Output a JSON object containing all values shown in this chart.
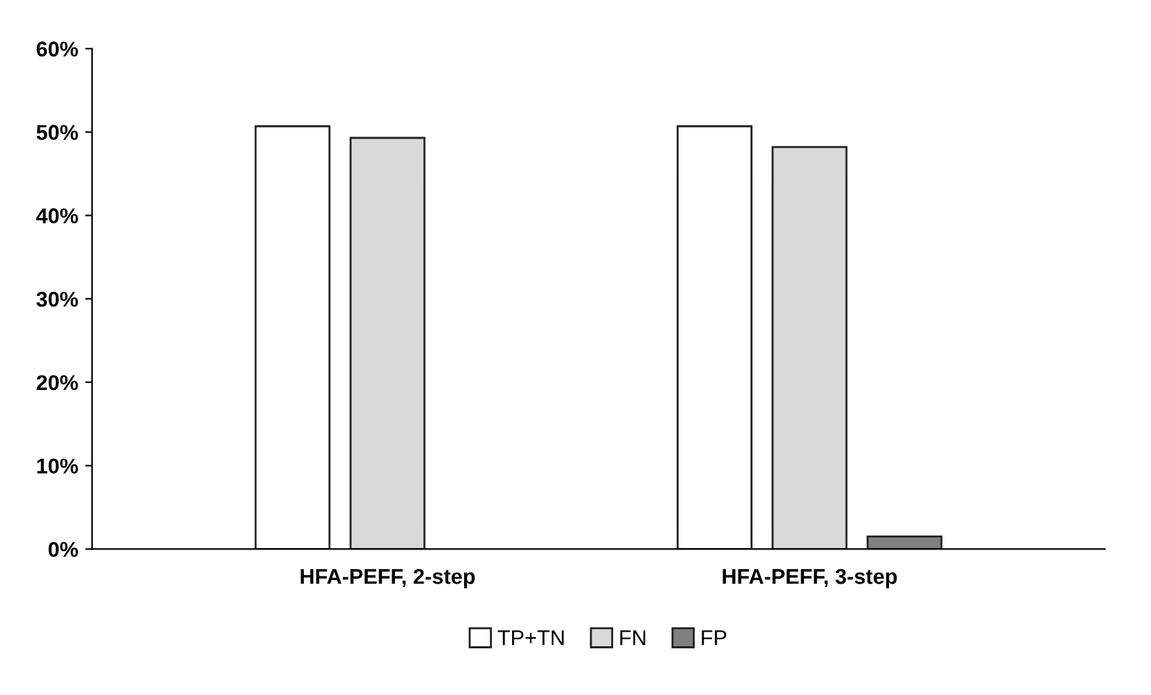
{
  "chart_data": {
    "type": "bar",
    "categories": [
      "HFA-PEFF, 2-step",
      "HFA-PEFF, 3-step"
    ],
    "series": [
      {
        "name": "TP+TN",
        "color": "#ffffff",
        "values": [
          50.7,
          50.7
        ]
      },
      {
        "name": "FN",
        "color": "#d9d9d9",
        "values": [
          49.3,
          48.2
        ]
      },
      {
        "name": "FP",
        "color": "#808080",
        "values": [
          null,
          1.5
        ]
      }
    ],
    "ylim": [
      0,
      60
    ],
    "yticks": [
      {
        "value": 0,
        "label": "0%"
      },
      {
        "value": 10,
        "label": "10%"
      },
      {
        "value": 20,
        "label": "20%"
      },
      {
        "value": 30,
        "label": "30%"
      },
      {
        "value": 40,
        "label": "40%"
      },
      {
        "value": 50,
        "label": "50%"
      },
      {
        "value": 60,
        "label": "60%"
      }
    ],
    "grid": false,
    "legend": "bottom"
  }
}
